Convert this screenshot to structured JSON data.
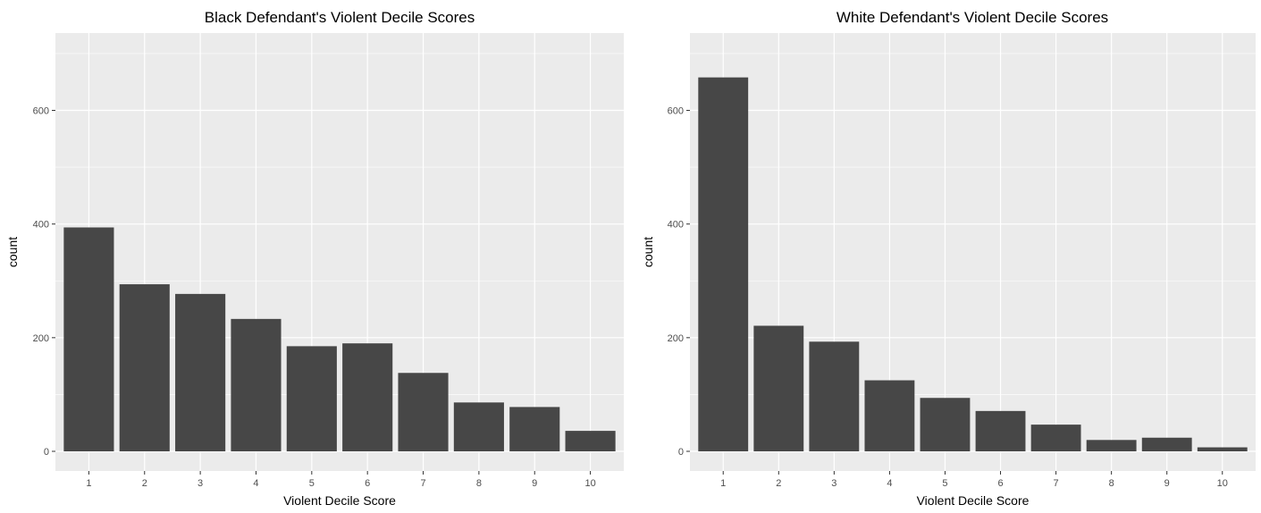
{
  "chart_data": [
    {
      "type": "bar",
      "title": "Black Defendant's Violent Decile Scores",
      "xlabel": "Violent Decile Score",
      "ylabel": "count",
      "categories": [
        "1",
        "2",
        "3",
        "4",
        "5",
        "6",
        "7",
        "8",
        "9",
        "10"
      ],
      "values": [
        394,
        294,
        277,
        233,
        185,
        190,
        138,
        86,
        78,
        36
      ],
      "ylim": [
        0,
        720
      ],
      "yticks": [
        0,
        200,
        400,
        600
      ],
      "grid": true,
      "colors": {
        "bar": "#474747",
        "panel": "#ebebeb",
        "grid": "#ffffff"
      }
    },
    {
      "type": "bar",
      "title": "White Defendant's Violent Decile Scores",
      "xlabel": "Violent Decile Score",
      "ylabel": "count",
      "categories": [
        "1",
        "2",
        "3",
        "4",
        "5",
        "6",
        "7",
        "8",
        "9",
        "10"
      ],
      "values": [
        658,
        221,
        193,
        125,
        94,
        71,
        47,
        20,
        24,
        7
      ],
      "ylim": [
        0,
        720
      ],
      "yticks": [
        0,
        200,
        400,
        600
      ],
      "grid": true,
      "colors": {
        "bar": "#474747",
        "panel": "#ebebeb",
        "grid": "#ffffff"
      }
    }
  ]
}
